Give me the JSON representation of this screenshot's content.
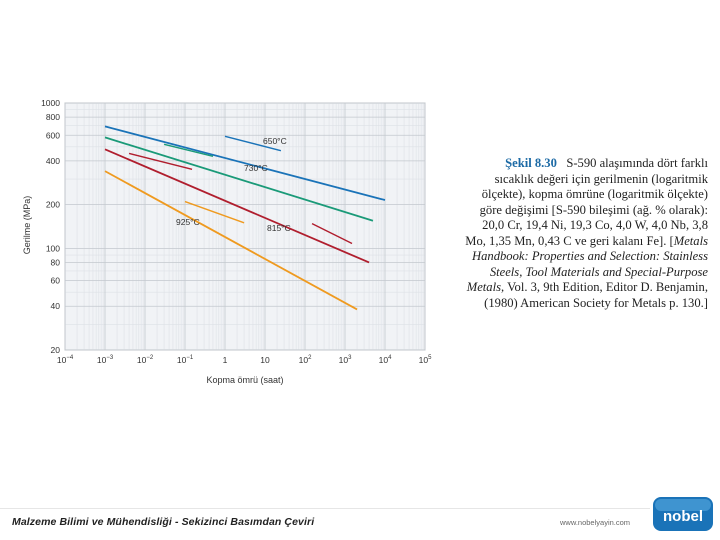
{
  "chart_data": {
    "type": "line",
    "xscale": "log",
    "yscale": "log",
    "xlabel": "Kopma ömrü (saat)",
    "ylabel": "Gerilme (MPa)",
    "xlim": [
      0.0001,
      100000
    ],
    "ylim": [
      20,
      1000
    ],
    "grid": true,
    "x_ticks": [
      {
        "value": 0.0001,
        "base": "10",
        "exp": "−4"
      },
      {
        "value": 0.001,
        "base": "10",
        "exp": "−3"
      },
      {
        "value": 0.01,
        "base": "10",
        "exp": "−2"
      },
      {
        "value": 0.1,
        "base": "10",
        "exp": "−1"
      },
      {
        "value": 1,
        "base": "1",
        "exp": ""
      },
      {
        "value": 10,
        "base": "10",
        "exp": ""
      },
      {
        "value": 100,
        "base": "10",
        "exp": "2"
      },
      {
        "value": 1000,
        "base": "10",
        "exp": "3"
      },
      {
        "value": 10000,
        "base": "10",
        "exp": "4"
      },
      {
        "value": 100000,
        "base": "10",
        "exp": "5"
      }
    ],
    "y_ticks": [
      {
        "value": 1000,
        "label": "1000"
      },
      {
        "value": 800,
        "label": "800"
      },
      {
        "value": 600,
        "label": "600"
      },
      {
        "value": 400,
        "label": "400"
      },
      {
        "value": 200,
        "label": "200"
      },
      {
        "value": 100,
        "label": "100"
      },
      {
        "value": 80,
        "label": "80"
      },
      {
        "value": 60,
        "label": "60"
      },
      {
        "value": 40,
        "label": "40"
      },
      {
        "value": 20,
        "label": "20"
      }
    ],
    "series": [
      {
        "name": "650°C",
        "color": "#1a73b8",
        "x": [
          0.001,
          10000
        ],
        "y": [
          690,
          215
        ],
        "scatter": [
          {
            "x": [
              1,
              25
            ],
            "y": [
              590,
              470
            ]
          }
        ]
      },
      {
        "name": "730°C",
        "color": "#1a9a78",
        "x": [
          0.001,
          5000
        ],
        "y": [
          580,
          155
        ],
        "scatter": [
          {
            "x": [
              0.03,
              0.5
            ],
            "y": [
              520,
              430
            ]
          }
        ]
      },
      {
        "name": "815°C",
        "color": "#b01e2e",
        "x": [
          0.001,
          4000
        ],
        "y": [
          480,
          80
        ],
        "scatter": [
          {
            "x": [
              0.004,
              0.15
            ],
            "y": [
              450,
              350
            ]
          },
          {
            "x": [
              150,
              1500
            ],
            "y": [
              148,
              108
            ]
          }
        ]
      },
      {
        "name": "925°C",
        "color": "#ef9a1f",
        "x": [
          0.001,
          2000
        ],
        "y": [
          340,
          38
        ],
        "scatter": [
          {
            "x": [
              0.1,
              3
            ],
            "y": [
              210,
              150
            ]
          }
        ]
      }
    ],
    "annotations": [
      {
        "text": "650°C",
        "series": 0
      },
      {
        "text": "730°C",
        "series": 1
      },
      {
        "text": "815°C",
        "series": 2
      },
      {
        "text": "925°C",
        "series": 3
      }
    ]
  },
  "caption": {
    "label": "Şekil 8.30",
    "lines": [
      [
        "S-590 alaşımında dört farklı"
      ],
      [
        "sıcaklık değeri için gerilmenin (logaritmik"
      ],
      [
        "ölçekte), kopma ömrüne (logaritmik ölçekte)"
      ],
      [
        "göre değişimi [S-590 bileşimi (ağ. % olarak):"
      ],
      [
        "20,0 Cr, 19,4 Ni, 19,3 Co, 4,0 W, 4,0 Nb, 3,8"
      ],
      [
        "Mo, 1,35 Mn, 0,43 C ve geri kalanı Fe]. [",
        "Metals"
      ],
      [
        "Handbook: Properties and Selection: Stainless"
      ],
      [
        "Steels, Tool Materials and Special-Purpose"
      ],
      [
        "Metals,",
        " Vol. 3, 9th Edition, Editor D. Benjamin,"
      ],
      [
        "(1980) American Society for Metals p. 130.]"
      ]
    ]
  },
  "footer": {
    "book_title": "Malzeme Bilimi ve Mühendisliği - Sekizinci Basımdan Çeviri",
    "url": "www.nobelyayin.com",
    "logo_text": "nobel",
    "logo_color": "#1a73b8"
  }
}
